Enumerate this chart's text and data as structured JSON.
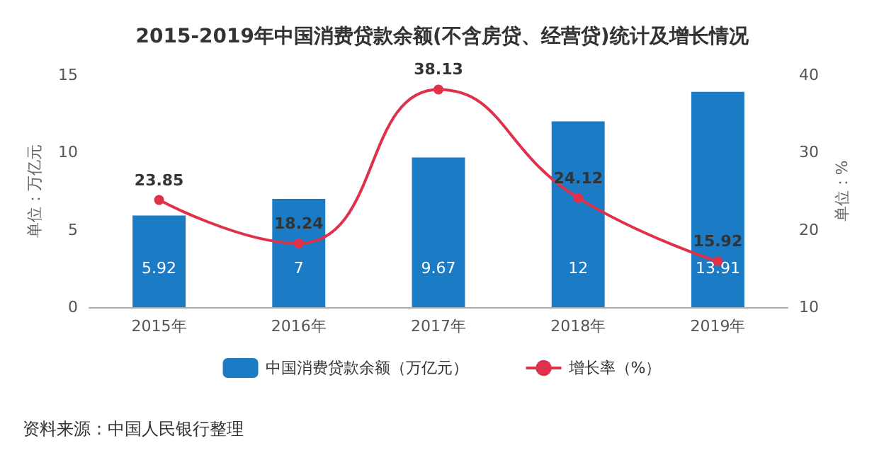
{
  "chart_data": {
    "type": "bar",
    "title": "2015-2019年中国消费贷款余额(不含房贷、经营贷)统计及增长情况",
    "categories": [
      "2015年",
      "2016年",
      "2017年",
      "2018年",
      "2019年"
    ],
    "series": [
      {
        "name": "中国消费贷款余额（万亿元）",
        "color": "#1b7bc4",
        "values": [
          5.92,
          7,
          9.67,
          12,
          13.91
        ]
      },
      {
        "name": "增长率（%）",
        "type": "line",
        "axis": "y2",
        "color": "#e0314b",
        "values": [
          23.85,
          18.24,
          38.13,
          24.12,
          15.92
        ]
      }
    ],
    "ylabel": "单位：万亿元",
    "y2label": "单位：%",
    "ylim": [
      0,
      15
    ],
    "yticks": [
      0,
      5,
      10,
      15
    ],
    "y2lim": [
      10,
      40
    ],
    "y2ticks": [
      10,
      20,
      30,
      40
    ],
    "data_labels": true,
    "grid": false,
    "legend": "bottom",
    "marker": "circle",
    "annotations": [
      "资料来源：中国人民银行整理"
    ]
  }
}
